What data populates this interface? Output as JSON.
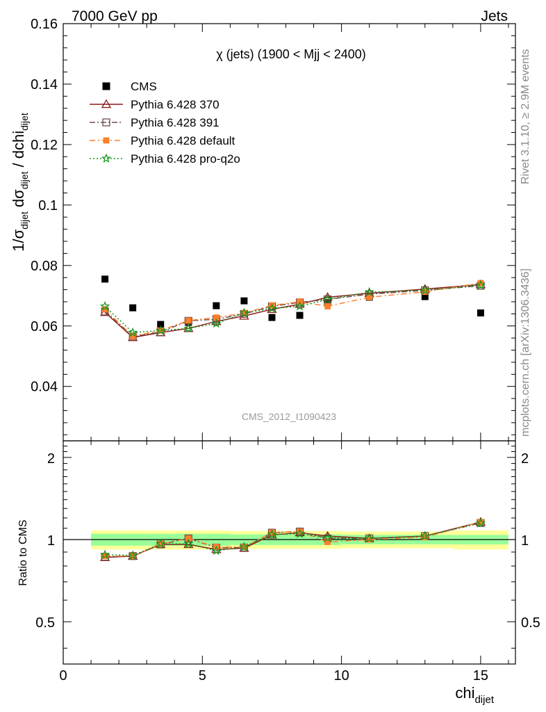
{
  "header": {
    "energy_label": "7000 GeV pp",
    "process_label": "Jets"
  },
  "side_labels": {
    "rivet": "Rivet 3.1.10, ≥ 2.9M events",
    "mcplots": "mcplots.cern.ch [arXiv:1306.3436]"
  },
  "watermark": "CMS_2012_I1090423",
  "chart_data": [
    {
      "type": "scatter",
      "title": "χ (jets) (1900 < Mjj < 2400)",
      "xlabel": "chi",
      "xlabel_sub": "dijet",
      "ylabel": "1/σdijet dσdijet / dchidijet",
      "xlim": [
        0,
        16.25
      ],
      "ylim": [
        0.022,
        0.16
      ],
      "x_ticks": [
        0,
        5,
        10,
        15
      ],
      "x_tick_labels": [
        "0",
        "5",
        "10",
        "15"
      ],
      "y_ticks": [
        0.04,
        0.06,
        0.08,
        0.1,
        0.12,
        0.14,
        0.16
      ],
      "y_tick_labels": [
        "0.04",
        "0.06",
        "0.08",
        "0.1",
        "0.12",
        "0.14",
        "0.16"
      ],
      "x": [
        1.5,
        2.5,
        3.5,
        4.5,
        5.5,
        6.5,
        7.5,
        8.5,
        9.5,
        11,
        13,
        15
      ],
      "legend": "top-left",
      "series": [
        {
          "name": "CMS",
          "color": "#000000",
          "marker": "square",
          "values": [
            0.0755,
            0.066,
            0.0605,
            0.0612,
            0.0667,
            0.0683,
            0.0628,
            0.0635,
            0.0678,
            0.0695,
            0.0697,
            0.0643
          ]
        },
        {
          "name": "Pythia 6.428 370",
          "color": "#8b1a1a",
          "marker": "triangle",
          "dash": "",
          "values": [
            0.0645,
            0.0562,
            0.0578,
            0.0592,
            0.0615,
            0.0633,
            0.0655,
            0.0672,
            0.0695,
            0.0708,
            0.0722,
            0.0737
          ]
        },
        {
          "name": "Pythia 6.428 391",
          "color": "#6e4a4a",
          "marker": "open-square",
          "dash": "8,3,2,3",
          "values": [
            0.0648,
            0.0565,
            0.058,
            0.0617,
            0.0622,
            0.064,
            0.0665,
            0.0678,
            0.0688,
            0.0705,
            0.0718,
            0.0733
          ]
        },
        {
          "name": "Pythia 6.428 default",
          "color": "#ff7f2a",
          "marker": "filled-square",
          "dash": "8,4,2,4",
          "values": [
            0.0655,
            0.0566,
            0.0585,
            0.0618,
            0.0628,
            0.0643,
            0.0668,
            0.068,
            0.0665,
            0.0695,
            0.0713,
            0.0742
          ]
        },
        {
          "name": "Pythia 6.428 pro-q2o",
          "color": "#109618",
          "marker": "star",
          "dash": "2,3",
          "values": [
            0.0665,
            0.0578,
            0.0585,
            0.0592,
            0.0608,
            0.0643,
            0.0658,
            0.0665,
            0.0688,
            0.0712,
            0.0718,
            0.0735
          ]
        }
      ]
    },
    {
      "type": "line",
      "ylabel": "Ratio to CMS",
      "xlim": [
        0,
        16.25
      ],
      "ylim": [
        0.35,
        2.3
      ],
      "log_y": true,
      "y_ticks": [
        0.5,
        1,
        2
      ],
      "y_tick_labels": [
        "0.5",
        "1",
        "2"
      ],
      "reference_line": 1,
      "bins": [
        [
          1,
          2
        ],
        [
          2,
          3
        ],
        [
          3,
          4
        ],
        [
          4,
          5
        ],
        [
          5,
          6
        ],
        [
          6,
          7
        ],
        [
          7,
          8
        ],
        [
          8,
          9
        ],
        [
          9,
          10
        ],
        [
          10,
          12
        ],
        [
          12,
          14
        ],
        [
          14,
          16
        ]
      ],
      "band_inner": [
        [
          0.95,
          1.05
        ],
        [
          0.95,
          1.05
        ],
        [
          0.95,
          1.05
        ],
        [
          0.95,
          1.05
        ],
        [
          0.95,
          1.05
        ],
        [
          0.955,
          1.045
        ],
        [
          0.955,
          1.045
        ],
        [
          0.955,
          1.045
        ],
        [
          0.955,
          1.045
        ],
        [
          0.96,
          1.04
        ],
        [
          0.96,
          1.04
        ],
        [
          0.96,
          1.04
        ]
      ],
      "band_outer": [
        [
          0.92,
          1.08
        ],
        [
          0.92,
          1.08
        ],
        [
          0.92,
          1.08
        ],
        [
          0.92,
          1.08
        ],
        [
          0.92,
          1.08
        ],
        [
          0.925,
          1.075
        ],
        [
          0.925,
          1.075
        ],
        [
          0.925,
          1.075
        ],
        [
          0.925,
          1.075
        ],
        [
          0.93,
          1.07
        ],
        [
          0.93,
          1.07
        ],
        [
          0.92,
          1.08
        ]
      ],
      "band_inner_color": "#99ff99",
      "band_outer_color": "#ffff99",
      "x": [
        1.5,
        2.5,
        3.5,
        4.5,
        5.5,
        6.5,
        7.5,
        8.5,
        9.5,
        11,
        13,
        15
      ],
      "series": [
        {
          "name": "Pythia 6.428 370",
          "color": "#8b1a1a",
          "marker": "triangle",
          "dash": "",
          "values": [
            0.86,
            0.87,
            0.96,
            0.96,
            0.92,
            0.93,
            1.04,
            1.06,
            1.03,
            1.01,
            1.03,
            1.16
          ]
        },
        {
          "name": "Pythia 6.428 391",
          "color": "#6e4a4a",
          "marker": "open-square",
          "dash": "8,3,2,3",
          "values": [
            0.865,
            0.87,
            0.96,
            1.01,
            0.935,
            0.935,
            1.06,
            1.07,
            1.01,
            1.01,
            1.03,
            1.15
          ]
        },
        {
          "name": "Pythia 6.428 default",
          "color": "#ff7f2a",
          "marker": "filled-square",
          "dash": "8,4,2,4",
          "values": [
            0.87,
            0.87,
            0.965,
            1.01,
            0.94,
            0.94,
            1.06,
            1.07,
            0.98,
            1.0,
            1.02,
            1.16
          ]
        },
        {
          "name": "Pythia 6.428 pro-q2o",
          "color": "#109618",
          "marker": "star",
          "dash": "2,3",
          "values": [
            0.88,
            0.875,
            0.965,
            0.965,
            0.91,
            0.94,
            1.045,
            1.05,
            1.015,
            1.01,
            1.03,
            1.15
          ]
        }
      ]
    }
  ]
}
